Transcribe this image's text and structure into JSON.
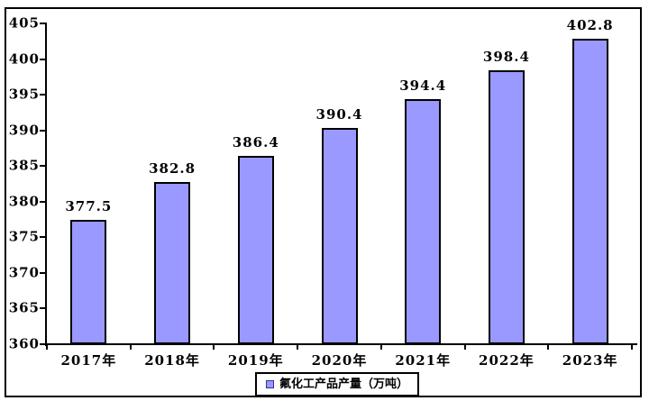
{
  "chart_data": {
    "type": "bar",
    "title": "",
    "xlabel": "",
    "ylabel": "",
    "categories": [
      "2017年",
      "2018年",
      "2019年",
      "2020年",
      "2021年",
      "2022年",
      "2023年"
    ],
    "values": [
      377.5,
      382.8,
      386.4,
      390.4,
      394.4,
      398.4,
      402.8
    ],
    "value_labels": [
      "377.5",
      "382.8",
      "386.4",
      "390.4",
      "394.4",
      "398.4",
      "402.8"
    ],
    "series_name": "氟化工产品产量（万吨）",
    "ylim": [
      360,
      405
    ],
    "ytick_step": 5,
    "yticks": [
      360,
      365,
      370,
      375,
      380,
      385,
      390,
      395,
      400,
      405
    ],
    "grid": false,
    "legend_position": "bottom",
    "colors": {
      "bar_fill": "#9999FF",
      "bar_border": "#000000",
      "swatch_border": "#333399",
      "text": "#000000",
      "background": "#FFFFFF",
      "frame_border": "#000000"
    }
  },
  "legend": {
    "label": "氟化工产品产量（万吨）"
  }
}
